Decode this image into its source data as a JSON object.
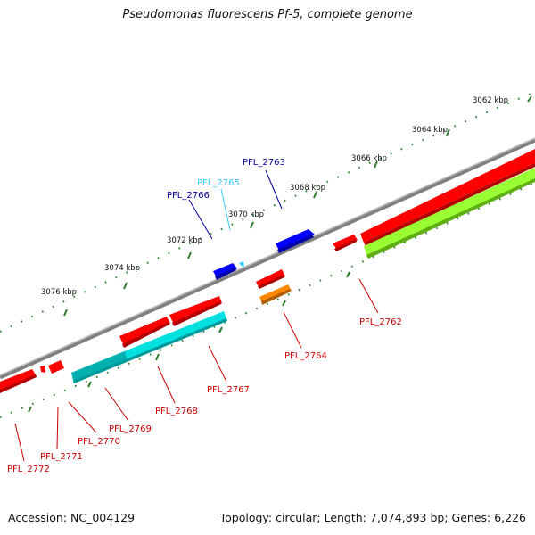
{
  "title": "Pseudomonas fluorescens Pf-5, complete genome",
  "footer": {
    "accession": "Accession: NC_004129",
    "topology": "Topology: circular; Length: 7,074,893 bp; Genes: 6,226"
  },
  "colors": {
    "backbone": "#8a8a8a",
    "tick": "#2e7d2e",
    "forward_cds": "#ff0000",
    "reverse_cds": "#ff0000",
    "blue_gene": "#0000ff",
    "cyan_gene": "#00e0e0",
    "orange_gene": "#ff8800",
    "green_gene": "#99ff33",
    "label_red": "#cc0000",
    "label_blue": "#000099",
    "label_cyan": "#33ccff"
  },
  "tick_labels": [
    "3062 kbp",
    "3064 kbp",
    "3066 kbp",
    "3068 kbp",
    "3070 kbp",
    "3072 kbp",
    "3074 kbp",
    "3076 kbp"
  ],
  "gene_labels": [
    {
      "text": "PFL_2763",
      "color": "label_blue"
    },
    {
      "text": "PFL_2765",
      "color": "label_cyan"
    },
    {
      "text": "PFL_2766",
      "color": "label_blue"
    },
    {
      "text": "PFL_2762",
      "color": "label_red"
    },
    {
      "text": "PFL_2764",
      "color": "label_red"
    },
    {
      "text": "PFL_2767",
      "color": "label_red"
    },
    {
      "text": "PFL_2768",
      "color": "label_red"
    },
    {
      "text": "PFL_2769",
      "color": "label_red"
    },
    {
      "text": "PFL_2770",
      "color": "label_red"
    },
    {
      "text": "PFL_2771",
      "color": "label_red"
    },
    {
      "text": "PFL_2772",
      "color": "label_red"
    }
  ]
}
